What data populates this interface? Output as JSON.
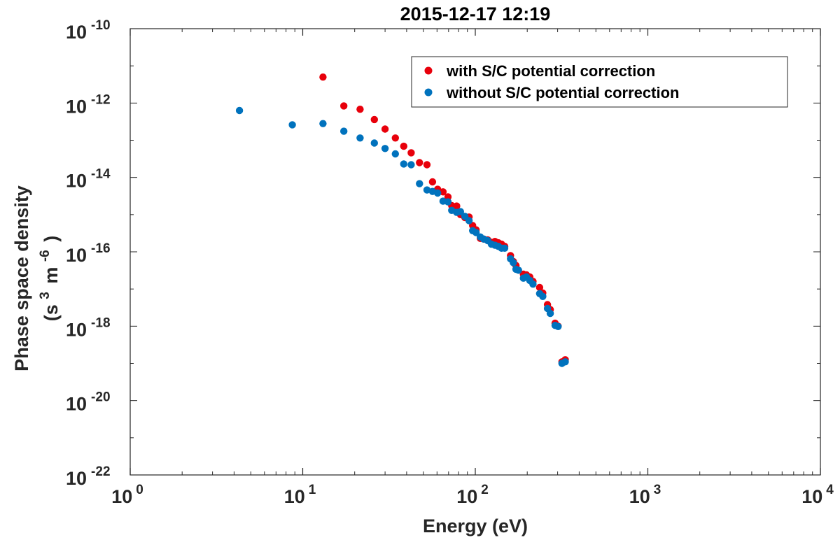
{
  "chart_data": {
    "type": "scatter",
    "title": "2015-12-17 12:19",
    "xlabel": "Energy (eV)",
    "ylabel_line1": "Phase space density",
    "ylabel_line2": {
      "open": "(s",
      "exp1": "3",
      "mid": "m",
      "exp2": "-6",
      "close": ")"
    },
    "xscale": "log",
    "yscale": "log",
    "xlim": [
      1,
      10000
    ],
    "ylim": [
      1e-22,
      1e-10
    ],
    "grid": false,
    "legend_position": "top-right",
    "x_ticks": [
      {
        "base": "10",
        "exp": "0"
      },
      {
        "base": "10",
        "exp": "1"
      },
      {
        "base": "10",
        "exp": "2"
      },
      {
        "base": "10",
        "exp": "3"
      },
      {
        "base": "10",
        "exp": "4"
      }
    ],
    "y_ticks": [
      {
        "base": "10",
        "exp": "-10"
      },
      {
        "base": "10",
        "exp": "-12"
      },
      {
        "base": "10",
        "exp": "-14"
      },
      {
        "base": "10",
        "exp": "-16"
      },
      {
        "base": "10",
        "exp": "-18"
      },
      {
        "base": "10",
        "exp": "-20"
      },
      {
        "base": "10",
        "exp": "-22"
      }
    ],
    "series": [
      {
        "name": "with S/C potential correction",
        "color": "#e8000b",
        "points": [
          [
            13.1,
            5e-12
          ],
          [
            17.3,
            8.4e-13
          ],
          [
            21.5,
            6.8e-13
          ],
          [
            26.0,
            3.6e-13
          ],
          [
            30.0,
            2e-13
          ],
          [
            34.4,
            1.15e-13
          ],
          [
            38.5,
            6.9e-14
          ],
          [
            42.5,
            4.6e-14
          ],
          [
            47.5,
            2.5e-14
          ],
          [
            52.5,
            2.2e-14
          ],
          [
            56.5,
            7.6e-15
          ],
          [
            60.5,
            4.8e-15
          ],
          [
            65.0,
            4.1e-15
          ],
          [
            69.5,
            3e-15
          ],
          [
            73.0,
            1.75e-15
          ],
          [
            78.0,
            1.7e-15
          ],
          [
            82.0,
            1e-15
          ],
          [
            87.0,
            8.4e-16
          ],
          [
            92.0,
            8.6e-16
          ],
          [
            96.5,
            5.1e-16
          ],
          [
            101.0,
            3.9e-16
          ],
          [
            107.0,
            2.3e-16
          ],
          [
            112.0,
            2.2e-16
          ],
          [
            118.0,
            2.1e-16
          ],
          [
            124.0,
            1.8e-16
          ],
          [
            130.0,
            1.9e-16
          ],
          [
            136.0,
            1.75e-16
          ],
          [
            142.0,
            1.6e-16
          ],
          [
            148.0,
            1.4e-16
          ],
          [
            160.0,
            7.9e-17
          ],
          [
            166.0,
            5.5e-17
          ],
          [
            172.0,
            4.3e-17
          ],
          [
            190.0,
            2.5e-17
          ],
          [
            198.0,
            2.4e-17
          ],
          [
            207.0,
            2.1e-17
          ],
          [
            216.0,
            1.6e-17
          ],
          [
            236.0,
            1.1e-17
          ],
          [
            246.0,
            7.8e-18
          ],
          [
            262.0,
            3.8e-18
          ],
          [
            272.0,
            2.8e-18
          ],
          [
            290.0,
            1.2e-18
          ],
          [
            302.0,
            1e-18
          ],
          [
            318.0,
            1.1e-19
          ],
          [
            332.0,
            1.25e-19
          ]
        ]
      },
      {
        "name": "without S/C potential correction",
        "color": "#0072bd",
        "points": [
          [
            4.3,
            6.3e-13
          ],
          [
            8.7,
            2.6e-13
          ],
          [
            13.1,
            2.8e-13
          ],
          [
            17.3,
            1.75e-13
          ],
          [
            21.5,
            1.15e-13
          ],
          [
            26.0,
            8.4e-14
          ],
          [
            30.0,
            6e-14
          ],
          [
            34.4,
            4.3e-14
          ],
          [
            38.5,
            2.3e-14
          ],
          [
            42.5,
            2.2e-14
          ],
          [
            47.5,
            6.8e-15
          ],
          [
            52.5,
            4.6e-15
          ],
          [
            56.5,
            4.2e-15
          ],
          [
            60.5,
            3.8e-15
          ],
          [
            65.0,
            2.3e-15
          ],
          [
            69.5,
            2.2e-15
          ],
          [
            73.0,
            1.3e-15
          ],
          [
            78.0,
            1.15e-15
          ],
          [
            82.0,
            1.2e-15
          ],
          [
            87.0,
            9e-16
          ],
          [
            92.0,
            6.9e-16
          ],
          [
            96.5,
            3.7e-16
          ],
          [
            101.0,
            3.3e-16
          ],
          [
            107.0,
            2.5e-16
          ],
          [
            112.0,
            2.2e-16
          ],
          [
            118.0,
            2e-16
          ],
          [
            124.0,
            1.6e-16
          ],
          [
            130.0,
            1.5e-16
          ],
          [
            136.0,
            1.4e-16
          ],
          [
            142.0,
            1.25e-16
          ],
          [
            148.0,
            1.25e-16
          ],
          [
            160.0,
            6.5e-17
          ],
          [
            166.0,
            5.1e-17
          ],
          [
            172.0,
            3.4e-17
          ],
          [
            178.0,
            3.2e-17
          ],
          [
            190.0,
            1.95e-17
          ],
          [
            198.0,
            2.1e-17
          ],
          [
            207.0,
            1.7e-17
          ],
          [
            216.0,
            1.35e-17
          ],
          [
            236.0,
            7.5e-18
          ],
          [
            246.0,
            6.3e-18
          ],
          [
            262.0,
            3e-18
          ],
          [
            272.0,
            2.2e-18
          ],
          [
            290.0,
            1.05e-18
          ],
          [
            302.0,
            9.8e-19
          ],
          [
            318.0,
            1e-19
          ],
          [
            332.0,
            1.1e-19
          ]
        ]
      }
    ]
  }
}
